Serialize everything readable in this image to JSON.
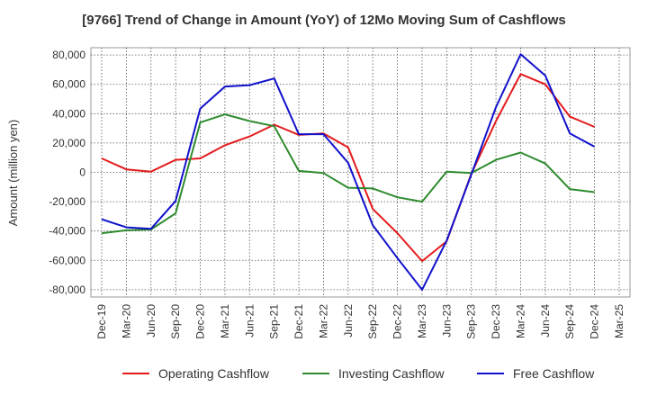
{
  "chart_data": {
    "type": "line",
    "title": "[9766]  Trend of Change in Amount (YoY) of 12Mo Moving Sum of Cashflows",
    "xlabel": "",
    "ylabel": "Amount (million yen)",
    "ylim": [
      -85000,
      85000
    ],
    "yticks": [
      80000,
      60000,
      40000,
      20000,
      0,
      -20000,
      -40000,
      -60000,
      -80000
    ],
    "ytick_labels": [
      "80,000",
      "60,000",
      "40,000",
      "20,000",
      "0",
      "-20,000",
      "-40,000",
      "-60,000",
      "-80,000"
    ],
    "categories": [
      "Dec-19",
      "Mar-20",
      "Jun-20",
      "Sep-20",
      "Dec-20",
      "Mar-21",
      "Jun-21",
      "Sep-21",
      "Dec-21",
      "Mar-22",
      "Jun-22",
      "Sep-22",
      "Dec-22",
      "Mar-23",
      "Jun-23",
      "Sep-23",
      "Dec-23",
      "Mar-24",
      "Jun-24",
      "Sep-24",
      "Dec-24",
      "Mar-25"
    ],
    "grid": true,
    "legend_position": "bottom",
    "series": [
      {
        "name": "Operating Cashflow",
        "color": "#e31a1c",
        "values": [
          9500,
          2000,
          500,
          8500,
          9500,
          18500,
          24500,
          32500,
          25500,
          26500,
          17000,
          -25000,
          -41500,
          -60500,
          -47000,
          -1000,
          35000,
          67000,
          60000,
          38000,
          31000,
          null
        ]
      },
      {
        "name": "Investing Cashflow",
        "color": "#2e8b2e",
        "values": [
          -41500,
          -39500,
          -39000,
          -28000,
          34000,
          39500,
          35000,
          31500,
          1000,
          -500,
          -10500,
          -11000,
          -17000,
          -20000,
          500,
          -500,
          8500,
          13500,
          6000,
          -11500,
          -13500,
          null
        ]
      },
      {
        "name": "Free Cashflow",
        "color": "#1111cc",
        "values": [
          -32000,
          -37500,
          -38500,
          -19500,
          43500,
          58500,
          59500,
          64000,
          26000,
          26000,
          6500,
          -36000,
          -58500,
          -80000,
          -46500,
          -1500,
          44500,
          80500,
          66000,
          26500,
          17500,
          null
        ]
      }
    ]
  }
}
